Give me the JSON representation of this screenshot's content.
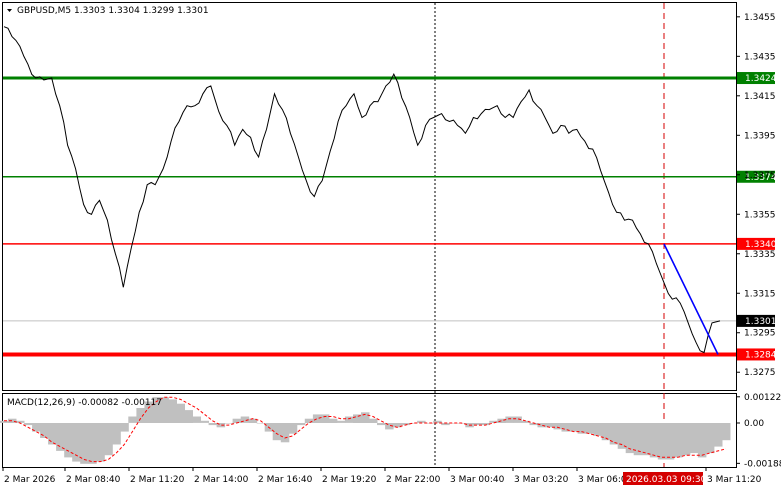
{
  "window": {
    "symbol_header": "GBPUSD,M5  1.3303 1.3304 1.3299 1.3301",
    "dropdown_icon": "triangle-down-icon"
  },
  "colors": {
    "price_line": "#000000",
    "green_level": "#008000",
    "red_level": "#ff0000",
    "trend_line": "#0000ff",
    "macd_hist": "#c0c0c0",
    "macd_signal": "#ff0000",
    "grid_dotted": "#000000",
    "current_time_marker": "#d40000"
  },
  "price_axis": {
    "ticks": [
      "1.3455",
      "1.3435",
      "1.3415",
      "1.3395",
      "1.3375",
      "1.3355",
      "1.3335",
      "1.3315",
      "1.3295",
      "1.3275"
    ],
    "range": [
      1.3266,
      1.3462
    ]
  },
  "levels": [
    {
      "label": "1.3424",
      "value": 1.3424,
      "color": "#008000",
      "width": 3
    },
    {
      "label": "1.3374",
      "value": 1.3374,
      "color": "#008000",
      "width": 1.5
    },
    {
      "label": "1.3340",
      "value": 1.334,
      "color": "#ff0000",
      "width": 1.5
    },
    {
      "label": "1.3284",
      "value": 1.3284,
      "color": "#ff0000",
      "width": 4
    }
  ],
  "current_price": {
    "label": "1.3301",
    "value": 1.3301
  },
  "macd": {
    "title": "MACD(12,26,9) -0.00082 -0.00117",
    "ticks": [
      "0.00122",
      "0.00",
      "-0.00188"
    ],
    "range": [
      -0.00205,
      0.00135
    ]
  },
  "time_axis": {
    "labels": [
      "2 Mar 2026",
      "2 Mar 08:40",
      "2 Mar 11:20",
      "2 Mar 14:00",
      "2 Mar 16:40",
      "2 Mar 19:20",
      "2 Mar 22:00",
      "3 Mar 00:40",
      "3 Mar 03:20",
      "3 Mar 06:00",
      "3 Mar 11:20"
    ],
    "highlight_label": "2026.03.03 09:30"
  },
  "chart_data": {
    "type": "line",
    "title": "GBPUSD,M5",
    "series": [
      {
        "name": "GBPUSD",
        "values": [
          1.345,
          1.3445,
          1.344,
          1.3431,
          1.3424,
          1.3423,
          1.3424,
          1.341,
          1.339,
          1.3378,
          1.336,
          1.3355,
          1.3362,
          1.3352,
          1.3335,
          1.3318,
          1.3338,
          1.3356,
          1.337,
          1.337,
          1.3378,
          1.3392,
          1.3402,
          1.341,
          1.341,
          1.3416,
          1.342,
          1.3407,
          1.34,
          1.339,
          1.3398,
          1.3394,
          1.3384,
          1.3398,
          1.3416,
          1.3408,
          1.3396,
          1.3384,
          1.3372,
          1.3364,
          1.3372,
          1.3387,
          1.3402,
          1.341,
          1.3416,
          1.3404,
          1.341,
          1.3412,
          1.342,
          1.3426,
          1.3414,
          1.3404,
          1.339,
          1.34,
          1.3404,
          1.3406,
          1.3402,
          1.34,
          1.3396,
          1.3404,
          1.3406,
          1.3408,
          1.341,
          1.3404,
          1.3404,
          1.3412,
          1.3418,
          1.341,
          1.3404,
          1.3396,
          1.34,
          1.3396,
          1.3398,
          1.3392,
          1.3388,
          1.3377,
          1.3366,
          1.3356,
          1.3352,
          1.3352,
          1.3345,
          1.334,
          1.333,
          1.332,
          1.3312,
          1.331,
          1.33,
          1.329,
          1.3285,
          1.33,
          1.3301
        ],
        "color": "#000000"
      }
    ],
    "levels": [
      1.3424,
      1.3374,
      1.334,
      1.3284
    ],
    "trend_line": {
      "from": 1.334,
      "to": 1.3284
    },
    "macd_histogram": [
      0.0001,
      0.0002,
      0.0001,
      -0.0001,
      -0.0004,
      -0.0007,
      -0.001,
      -0.0013,
      -0.0016,
      -0.0018,
      -0.0019,
      -0.0019,
      -0.0018,
      -0.0015,
      -0.001,
      -0.0004,
      0.0003,
      0.0007,
      0.001,
      0.0012,
      0.0012,
      0.0011,
      0.0009,
      0.0006,
      0.0003,
      0.0001,
      -0.0001,
      -0.0002,
      0.0,
      0.0002,
      0.0003,
      0.0002,
      0.0,
      -0.0004,
      -0.0008,
      -0.0009,
      -0.0005,
      -0.0001,
      0.0002,
      0.0004,
      0.0004,
      0.0002,
      0.0001,
      0.0003,
      0.0004,
      0.0005,
      0.0002,
      -0.0001,
      -0.0003,
      -0.0002,
      -0.0001,
      0.0,
      0.0001,
      0.0,
      0.0001,
      -0.0001,
      0.0,
      0.0,
      -0.0002,
      -0.0001,
      -0.0001,
      0.0001,
      0.0002,
      0.0003,
      0.0003,
      0.0001,
      -0.0001,
      -0.0002,
      -0.0002,
      -0.0003,
      -0.0004,
      -0.0004,
      -0.0005,
      -0.0005,
      -0.0006,
      -0.0008,
      -0.001,
      -0.0012,
      -0.0014,
      -0.0015,
      -0.0015,
      -0.0016,
      -0.0017,
      -0.0017,
      -0.0016,
      -0.0015,
      -0.0014,
      -0.0016,
      -0.0014,
      -0.0011,
      -0.0008
    ],
    "macd_signal": [
      0.0001,
      0.0001,
      0.0,
      -0.0002,
      -0.0004,
      -0.0006,
      -0.0009,
      -0.0011,
      -0.0013,
      -0.0015,
      -0.0017,
      -0.0018,
      -0.0018,
      -0.0017,
      -0.0014,
      -0.001,
      -0.0004,
      0.0002,
      0.0007,
      0.001,
      0.0012,
      0.0012,
      0.0011,
      0.0009,
      0.0007,
      0.0004,
      0.0001,
      -0.0001,
      -0.0001,
      0.0,
      0.0001,
      0.0002,
      0.0001,
      -0.0002,
      -0.0005,
      -0.0007,
      -0.0006,
      -0.0003,
      0.0,
      0.0002,
      0.0003,
      0.0003,
      0.0002,
      0.0002,
      0.0003,
      0.0004,
      0.0003,
      0.0001,
      -0.0001,
      -0.0002,
      -0.0001,
      0.0,
      0.0,
      0.0,
      0.0,
      0.0,
      0.0,
      0.0,
      -0.0001,
      -0.0001,
      -0.0001,
      0.0,
      0.0001,
      0.0002,
      0.0002,
      0.0001,
      0.0,
      -0.0001,
      -0.0002,
      -0.0002,
      -0.0003,
      -0.0004,
      -0.0004,
      -0.0005,
      -0.0006,
      -0.0007,
      -0.0009,
      -0.001,
      -0.0012,
      -0.0013,
      -0.0014,
      -0.0015,
      -0.0016,
      -0.0016,
      -0.0016,
      -0.0015,
      -0.0015,
      -0.0015,
      -0.0014,
      -0.0013,
      -0.0012
    ]
  }
}
